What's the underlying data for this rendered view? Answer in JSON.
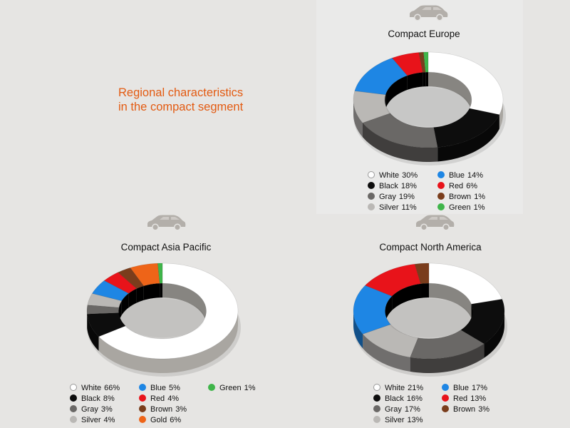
{
  "headline": {
    "line1": "Regional characteristics",
    "line2": "in the compact segment"
  },
  "car_icon": "car-silhouette-icon",
  "chart_data": [
    {
      "type": "pie",
      "title": "Compact Europe",
      "series": [
        {
          "label": "White",
          "value": 30,
          "color": "#ffffff"
        },
        {
          "label": "Black",
          "value": 18,
          "color": "#0d0d0d"
        },
        {
          "label": "Gray",
          "value": 19,
          "color": "#6a6866"
        },
        {
          "label": "Silver",
          "value": 11,
          "color": "#bab8b5"
        },
        {
          "label": "Blue",
          "value": 14,
          "color": "#1e86e4"
        },
        {
          "label": "Red",
          "value": 6,
          "color": "#e8131a"
        },
        {
          "label": "Brown",
          "value": 1,
          "color": "#7a3d1c"
        },
        {
          "label": "Green",
          "value": 1,
          "color": "#3fb54a"
        }
      ]
    },
    {
      "type": "pie",
      "title": "Compact Asia Pacific",
      "series": [
        {
          "label": "White",
          "value": 66,
          "color": "#ffffff"
        },
        {
          "label": "Black",
          "value": 8,
          "color": "#0d0d0d"
        },
        {
          "label": "Gray",
          "value": 3,
          "color": "#6a6866"
        },
        {
          "label": "Silver",
          "value": 4,
          "color": "#bab8b5"
        },
        {
          "label": "Blue",
          "value": 5,
          "color": "#1e86e4"
        },
        {
          "label": "Red",
          "value": 4,
          "color": "#e8131a"
        },
        {
          "label": "Brown",
          "value": 3,
          "color": "#7a3d1c"
        },
        {
          "label": "Gold",
          "value": 6,
          "color": "#ee6418"
        },
        {
          "label": "Green",
          "value": 1,
          "color": "#3fb54a"
        }
      ]
    },
    {
      "type": "pie",
      "title": "Compact North America",
      "series": [
        {
          "label": "White",
          "value": 21,
          "color": "#ffffff"
        },
        {
          "label": "Black",
          "value": 16,
          "color": "#0d0d0d"
        },
        {
          "label": "Gray",
          "value": 17,
          "color": "#6a6866"
        },
        {
          "label": "Silver",
          "value": 13,
          "color": "#bab8b5"
        },
        {
          "label": "Blue",
          "value": 17,
          "color": "#1e86e4"
        },
        {
          "label": "Red",
          "value": 13,
          "color": "#e8131a"
        },
        {
          "label": "Brown",
          "value": 3,
          "color": "#7a3d1c"
        }
      ]
    }
  ]
}
